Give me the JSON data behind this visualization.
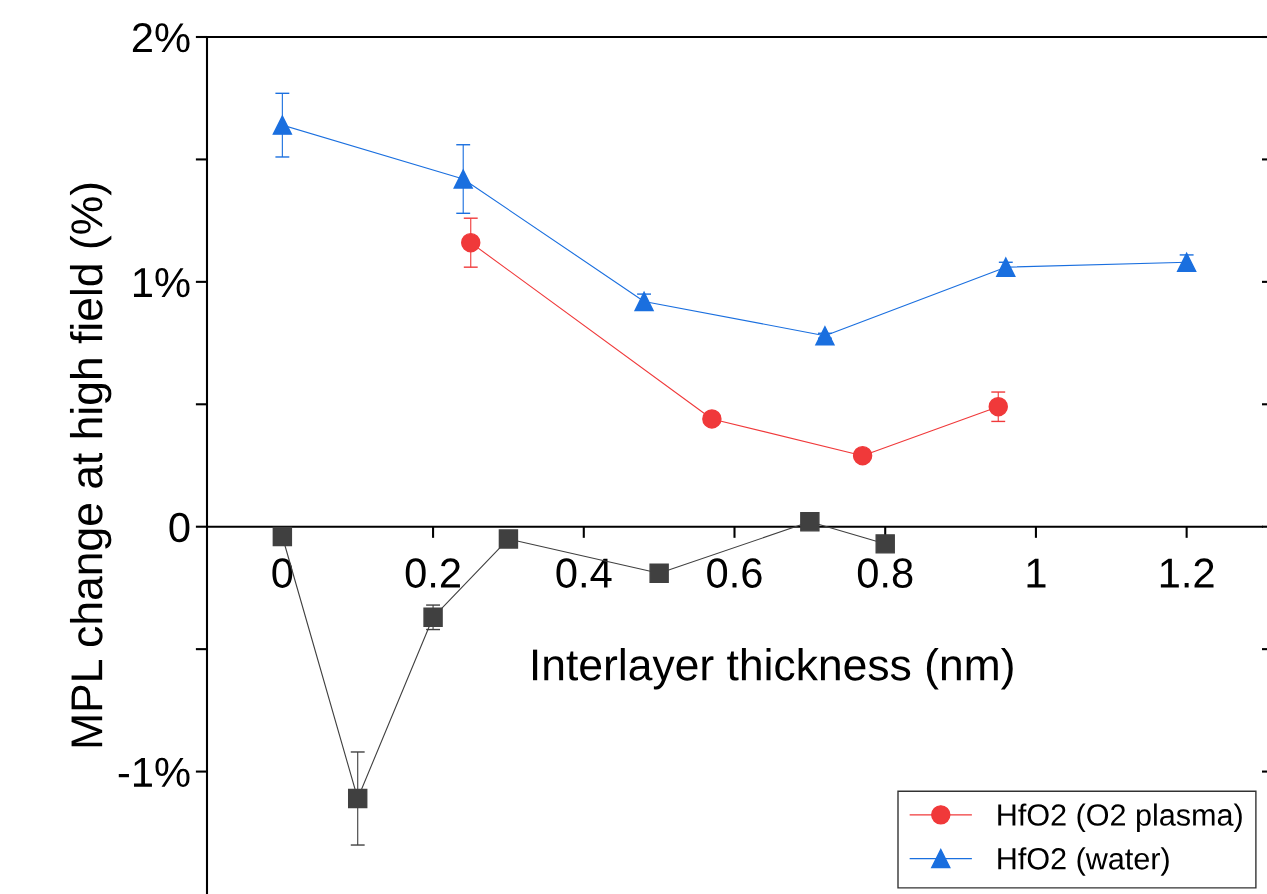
{
  "chart_data": {
    "type": "line",
    "xlabel": "Interlayer thickness (nm)",
    "ylabel": "MPL change at high field (%)",
    "xlim": [
      -0.1,
      1.3
    ],
    "xticks": [
      0,
      0.2,
      0.4,
      0.6,
      0.8,
      {
        "value": 1,
        "label": "1"
      },
      1.2
    ],
    "ylim": [
      -1.5,
      2
    ],
    "yticks": [
      {
        "value": -1,
        "label": "-1%"
      },
      {
        "value": -0.5,
        "label": null
      },
      0,
      {
        "value": 0.5,
        "label": null
      },
      {
        "value": 1,
        "label": "1%"
      },
      {
        "value": 1.5,
        "label": null
      },
      {
        "value": 2,
        "label": "2%"
      }
    ],
    "grid": false,
    "legend": "bottom right",
    "series": [
      {
        "color": "#404040",
        "marker": "square",
        "x": [
          0,
          0.1,
          0.2,
          0.3,
          0.5,
          0.7,
          0.8
        ],
        "values": [
          -0.04,
          -1.11,
          -0.37,
          -0.05,
          -0.19,
          0.02,
          -0.07
        ],
        "errors": [
          null,
          0.19,
          0.05,
          null,
          0.02,
          null,
          null
        ]
      },
      {
        "name": "HfO2 (O2 plasma)",
        "color": "#f0393a",
        "marker": "circle",
        "x": [
          0.25,
          0.57,
          0.77,
          0.95
        ],
        "values": [
          1.16,
          0.44,
          0.29,
          0.49
        ],
        "errors": [
          0.1,
          null,
          null,
          0.06
        ]
      },
      {
        "name": "HfO2 (water)",
        "color": "#1a6fdf",
        "marker": "triangle",
        "x": [
          0,
          0.24,
          0.48,
          0.72,
          0.96,
          1.2
        ],
        "values": [
          1.64,
          1.42,
          0.92,
          0.78,
          1.06,
          1.08
        ],
        "errors": [
          0.13,
          0.14,
          0.03,
          0.01,
          0.02,
          0.03
        ]
      }
    ]
  }
}
